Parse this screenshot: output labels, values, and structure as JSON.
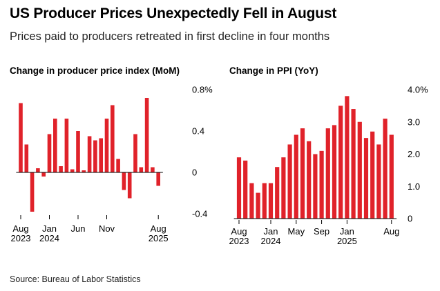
{
  "header": {
    "title": "US Producer Prices Unexpectedly Fell in August",
    "subtitle": "Prices paid to producers retreated in first decline in four months"
  },
  "footer": {
    "source": "Source: Bureau of Labor Statistics"
  },
  "colors": {
    "bar": "#e0222a",
    "axis": "#000000",
    "text": "#000000"
  },
  "chart_data": [
    {
      "type": "bar",
      "title": "Change in producer price index (MoM)",
      "ylim": [
        -0.4,
        0.8
      ],
      "y_tick_values": [
        -0.4,
        0,
        0.4,
        0.8
      ],
      "y_tick_labels": [
        "-0.4",
        "0",
        "0.4",
        "0.8%"
      ],
      "x_tick_labels": [
        {
          "index": 0,
          "lines": [
            "Aug",
            "2023"
          ]
        },
        {
          "index": 5,
          "lines": [
            "Jan",
            "2024"
          ]
        },
        {
          "index": 10,
          "lines": [
            "Jun"
          ]
        },
        {
          "index": 15,
          "lines": [
            "Nov"
          ]
        },
        {
          "index": 24,
          "lines": [
            "Aug",
            "2025"
          ]
        }
      ],
      "categories": [
        "Aug 2023",
        "Sep 2023",
        "Oct 2023",
        "Nov 2023",
        "Dec 2023",
        "Jan 2024",
        "Feb 2024",
        "Mar 2024",
        "Apr 2024",
        "May 2024",
        "Jun 2024",
        "Jul 2024",
        "Aug 2024",
        "Sep 2024",
        "Oct 2024",
        "Nov 2024",
        "Dec 2024",
        "Jan 2025",
        "Feb 2025",
        "Mar 2025",
        "Apr 2025",
        "May 2025",
        "Jun 2025",
        "Jul 2025",
        "Aug 2025"
      ],
      "values": [
        0.67,
        0.27,
        -0.38,
        0.04,
        -0.04,
        0.37,
        0.52,
        0.06,
        0.52,
        0.03,
        0.4,
        0.02,
        0.35,
        0.31,
        0.33,
        0.52,
        0.65,
        0.13,
        -0.17,
        -0.25,
        0.37,
        0.05,
        0.72,
        0.05,
        -0.13
      ],
      "grid": false
    },
    {
      "type": "bar",
      "title": "Change in PPI (YoY)",
      "ylim": [
        0,
        4.0
      ],
      "y_tick_values": [
        0,
        1.0,
        2.0,
        3.0,
        4.0
      ],
      "y_tick_labels": [
        "0",
        "1.0",
        "2.0",
        "3.0",
        "4.0%"
      ],
      "x_tick_labels": [
        {
          "index": 0,
          "lines": [
            "Aug",
            "2023"
          ]
        },
        {
          "index": 5,
          "lines": [
            "Jan",
            "2024"
          ]
        },
        {
          "index": 9,
          "lines": [
            "May"
          ]
        },
        {
          "index": 13,
          "lines": [
            "Sep"
          ]
        },
        {
          "index": 17,
          "lines": [
            "Jan",
            "2025"
          ]
        },
        {
          "index": 24,
          "lines": [
            "Aug"
          ]
        }
      ],
      "categories": [
        "Aug 2023",
        "Sep 2023",
        "Oct 2023",
        "Nov 2023",
        "Dec 2023",
        "Jan 2024",
        "Feb 2024",
        "Mar 2024",
        "Apr 2024",
        "May 2024",
        "Jun 2024",
        "Jul 2024",
        "Aug 2024",
        "Sep 2024",
        "Oct 2024",
        "Nov 2024",
        "Dec 2024",
        "Jan 2025",
        "Feb 2025",
        "Mar 2025",
        "Apr 2025",
        "May 2025",
        "Jun 2025",
        "Jul 2025",
        "Aug 2025"
      ],
      "values": [
        1.9,
        1.8,
        1.1,
        0.8,
        1.1,
        1.1,
        1.6,
        1.9,
        2.3,
        2.6,
        2.8,
        2.4,
        2.0,
        2.1,
        2.8,
        2.9,
        3.5,
        3.8,
        3.4,
        3.0,
        2.5,
        2.7,
        2.3,
        3.1,
        2.6
      ],
      "grid": false
    }
  ]
}
